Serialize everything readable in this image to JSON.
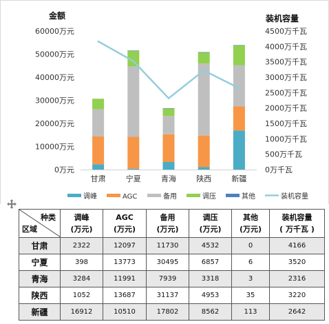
{
  "chart_data": {
    "type": "bar",
    "stacked": true,
    "categories": [
      "甘肃",
      "宁夏",
      "青海",
      "陕西",
      "新疆"
    ],
    "left_axis": {
      "title": "金额",
      "ticks": [
        "0万元",
        "10000万元",
        "20000万元",
        "30000万元",
        "40000万元",
        "50000万元",
        "60000万元"
      ],
      "range": [
        0,
        60000
      ]
    },
    "right_axis": {
      "title": "装机容量",
      "ticks": [
        "0万千瓦",
        "500万千瓦",
        "1000万千瓦",
        "1500万千瓦",
        "2000万千瓦",
        "2500万千瓦",
        "3000万千瓦",
        "3500万千瓦",
        "4000万千瓦",
        "4500万千瓦"
      ],
      "range": [
        0,
        4500
      ]
    },
    "series": [
      {
        "name": "调峰",
        "color": "#4bacc6",
        "values": [
          2322,
          398,
          3284,
          1052,
          16912
        ]
      },
      {
        "name": "AGC",
        "color": "#f79646",
        "values": [
          12097,
          13773,
          11991,
          13687,
          10510
        ]
      },
      {
        "name": "备用",
        "color": "#bfbfbf",
        "values": [
          11730,
          30495,
          7939,
          31137,
          17802
        ]
      },
      {
        "name": "调压",
        "color": "#92d050",
        "values": [
          4532,
          6857,
          3318,
          4953,
          8562
        ]
      },
      {
        "name": "其他",
        "color": "#4f81bd",
        "values": [
          0,
          6,
          3,
          35,
          113
        ]
      }
    ],
    "line_series": {
      "name": "装机容量",
      "color": "#93cddd",
      "axis": "right",
      "values": [
        4166,
        3520,
        2316,
        3220,
        2642
      ]
    },
    "legend_position": "bottom",
    "grid": false
  },
  "table": {
    "corner_top": "种类",
    "corner_bottom": "区域",
    "headers": [
      {
        "name": "调峰",
        "unit": "(万元)"
      },
      {
        "name": "AGC",
        "unit": "(万元)"
      },
      {
        "name": "备用",
        "unit": "(万元)"
      },
      {
        "name": "调压",
        "unit": "(万元)"
      },
      {
        "name": "其他",
        "unit": "(万元)"
      },
      {
        "name": "装机容量",
        "unit": "( 万千瓦 )"
      }
    ],
    "rows": [
      {
        "region": "甘肃",
        "cells": [
          "2322",
          "12097",
          "11730",
          "4532",
          "0",
          "4166"
        ]
      },
      {
        "region": "宁夏",
        "cells": [
          "398",
          "13773",
          "30495",
          "6857",
          "6",
          "3520"
        ]
      },
      {
        "region": "青海",
        "cells": [
          "3284",
          "11991",
          "7939",
          "3318",
          "3",
          "2316"
        ]
      },
      {
        "region": "陕西",
        "cells": [
          "1052",
          "13687",
          "31137",
          "4953",
          "35",
          "3220"
        ]
      },
      {
        "region": "新疆",
        "cells": [
          "16912",
          "10510",
          "17802",
          "8562",
          "113",
          "2642"
        ]
      }
    ]
  }
}
